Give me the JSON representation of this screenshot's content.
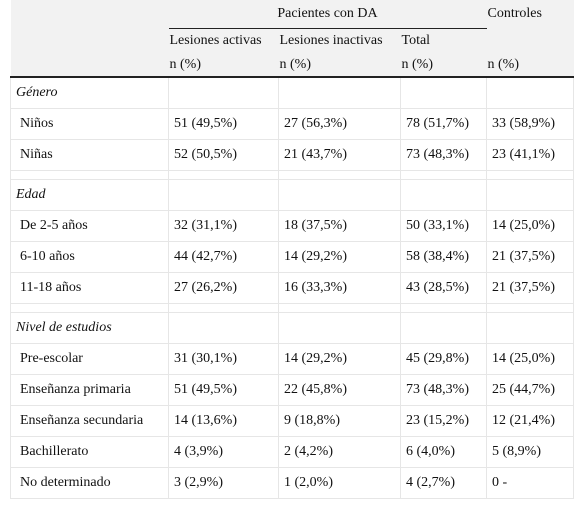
{
  "table": {
    "group_header": "Pacientes con DA",
    "controls_header": "Controles",
    "columns": [
      "Lesiones activas",
      "Lesiones inactivas",
      "Total"
    ],
    "units": [
      "n (%)",
      "n (%)",
      "n (%)",
      "n (%)"
    ],
    "sections": [
      {
        "title": "Género",
        "rows": [
          {
            "label": "Niños",
            "values": [
              "51 (49,5%)",
              "27 (56,3%)",
              "78 (51,7%)",
              "33 (58,9%)"
            ]
          },
          {
            "label": "Niñas",
            "values": [
              "52 (50,5%)",
              "21 (43,7%)",
              "73 (48,3%)",
              "23 (41,1%)"
            ]
          }
        ]
      },
      {
        "title": "Edad",
        "rows": [
          {
            "label": "De 2-5 años",
            "values": [
              "32 (31,1%)",
              "18 (37,5%)",
              "50 (33,1%)",
              "14 (25,0%)"
            ]
          },
          {
            "label": "6-10 años",
            "values": [
              "44 (42,7%)",
              "14 (29,2%)",
              "58 (38,4%)",
              "21 (37,5%)"
            ]
          },
          {
            "label": "11-18 años",
            "values": [
              "27 (26,2%)",
              "16 (33,3%)",
              "43 (28,5%)",
              "21 (37,5%)"
            ]
          }
        ]
      },
      {
        "title": "Nivel de estudios",
        "rows": [
          {
            "label": "Pre-escolar",
            "values": [
              "31 (30,1%)",
              "14 (29,2%)",
              "45 (29,8%)",
              "14 (25,0%)"
            ]
          },
          {
            "label": "Enseñanza primaria",
            "values": [
              "51 (49,5%)",
              "22 (45,8%)",
              "73 (48,3%)",
              "25 (44,7%)"
            ]
          },
          {
            "label": "Enseñanza secundaria",
            "values": [
              "14 (13,6%)",
              "9 (18,8%)",
              "23 (15,2%)",
              "12 (21,4%)"
            ]
          },
          {
            "label": "Bachillerato",
            "values": [
              "4 (3,9%)",
              "2 (4,2%)",
              "6 (4,0%)",
              "5 (8,9%)"
            ]
          },
          {
            "label": "No determinado",
            "values": [
              "3 (2,9%)",
              "1 (2,0%)",
              "4 (2,7%)",
              "0 -"
            ]
          }
        ]
      }
    ]
  }
}
